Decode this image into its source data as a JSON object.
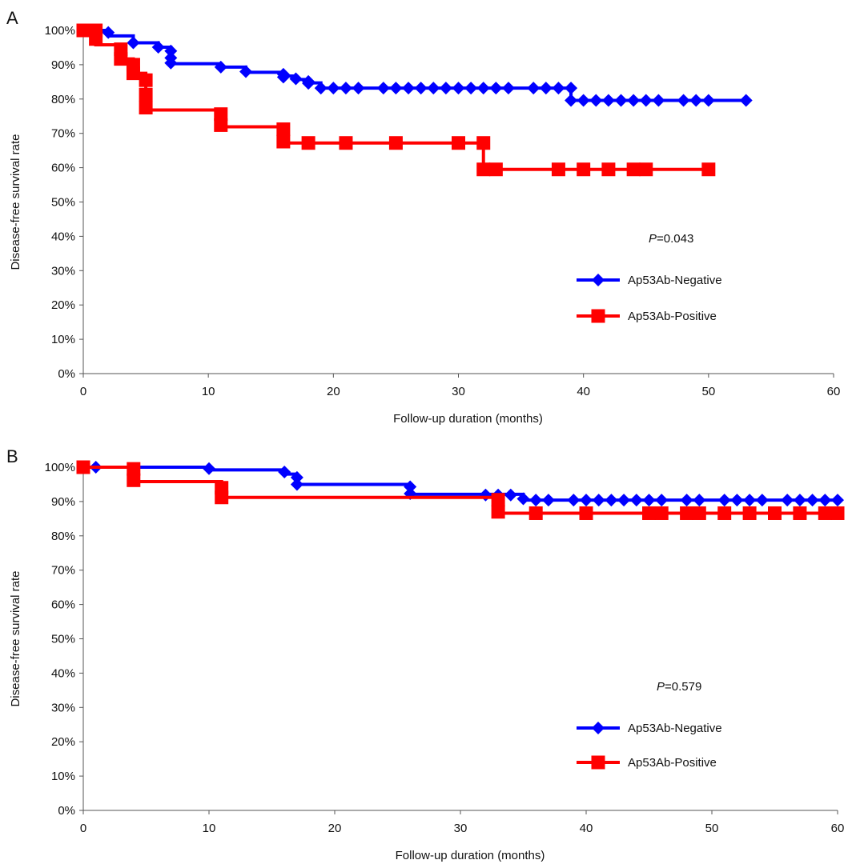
{
  "chart_data": [
    {
      "type": "line",
      "panel_label": "A",
      "xlabel": "Follow-up duration (months)",
      "ylabel": "Disease-free survival rate",
      "xlim": [
        0,
        60
      ],
      "ylim": [
        0,
        100
      ],
      "xticks": [
        "0",
        "10",
        "20",
        "30",
        "40",
        "50",
        "60"
      ],
      "yticks": [
        "0%",
        "10%",
        "20%",
        "30%",
        "40%",
        "50%",
        "60%",
        "70%",
        "80%",
        "90%",
        "100%"
      ],
      "grid": false,
      "legend_position": "right",
      "annotation": {
        "italic": "P",
        "rest": "=0.043"
      },
      "series": [
        {
          "name": "Ap53Ab-Negative",
          "color": "#0000ff",
          "marker": "diamond",
          "steps": [
            [
              0,
              100
            ],
            [
              2,
              98.4
            ],
            [
              4,
              96.4
            ],
            [
              6,
              95.1
            ],
            [
              7,
              93.0
            ],
            [
              7,
              90.3
            ],
            [
              11,
              89.3
            ],
            [
              13,
              87.8
            ],
            [
              16,
              86.7
            ],
            [
              17,
              85.7
            ],
            [
              18,
              84.7
            ],
            [
              19,
              83.2
            ],
            [
              39,
              79.6
            ],
            [
              53,
              79.6
            ]
          ],
          "points": [
            [
              0,
              100
            ],
            [
              1,
              100
            ],
            [
              2,
              99.4
            ],
            [
              4,
              96.4
            ],
            [
              6,
              95.1
            ],
            [
              7,
              94.0
            ],
            [
              7,
              92.0
            ],
            [
              7,
              90.5
            ],
            [
              11,
              89.3
            ],
            [
              13,
              88.0
            ],
            [
              16,
              87.2
            ],
            [
              16,
              86.4
            ],
            [
              17,
              85.9
            ],
            [
              18,
              85.1
            ],
            [
              18,
              84.6
            ],
            [
              19,
              83.2
            ],
            [
              20,
              83.2
            ],
            [
              21,
              83.2
            ],
            [
              22,
              83.2
            ],
            [
              24,
              83.2
            ],
            [
              25,
              83.2
            ],
            [
              26,
              83.2
            ],
            [
              27,
              83.2
            ],
            [
              28,
              83.2
            ],
            [
              29,
              83.2
            ],
            [
              30,
              83.2
            ],
            [
              31,
              83.2
            ],
            [
              32,
              83.2
            ],
            [
              33,
              83.2
            ],
            [
              34,
              83.2
            ],
            [
              36,
              83.2
            ],
            [
              37,
              83.2
            ],
            [
              38,
              83.2
            ],
            [
              39,
              83.2
            ],
            [
              39,
              79.6
            ],
            [
              40,
              79.6
            ],
            [
              41,
              79.6
            ],
            [
              42,
              79.6
            ],
            [
              43,
              79.6
            ],
            [
              44,
              79.6
            ],
            [
              45,
              79.6
            ],
            [
              46,
              79.6
            ],
            [
              48,
              79.6
            ],
            [
              49,
              79.6
            ],
            [
              50,
              79.6
            ],
            [
              53,
              79.6
            ]
          ]
        },
        {
          "name": "Ap53Ab-Positive",
          "color": "#ff0000",
          "marker": "square",
          "steps": [
            [
              0,
              100
            ],
            [
              1,
              95.8
            ],
            [
              3,
              91.7
            ],
            [
              4,
              87.5
            ],
            [
              5,
              81.3
            ],
            [
              5,
              76.8
            ],
            [
              11,
              71.9
            ],
            [
              16,
              67.2
            ],
            [
              32,
              59.5
            ],
            [
              50,
              59.5
            ]
          ],
          "points": [
            [
              0,
              100
            ],
            [
              1,
              100
            ],
            [
              1,
              97.5
            ],
            [
              3,
              94.5
            ],
            [
              3,
              91.7
            ],
            [
              4,
              90.0
            ],
            [
              4,
              87.5
            ],
            [
              5,
              85.5
            ],
            [
              5,
              81.3
            ],
            [
              5,
              77.5
            ],
            [
              11,
              75.6
            ],
            [
              11,
              72.4
            ],
            [
              16,
              71.2
            ],
            [
              16,
              67.6
            ],
            [
              18,
              67.2
            ],
            [
              21,
              67.2
            ],
            [
              25,
              67.2
            ],
            [
              30,
              67.2
            ],
            [
              32,
              67.2
            ],
            [
              32,
              59.5
            ],
            [
              33,
              59.5
            ],
            [
              38,
              59.5
            ],
            [
              40,
              59.5
            ],
            [
              42,
              59.5
            ],
            [
              44,
              59.5
            ],
            [
              45,
              59.5
            ],
            [
              50,
              59.5
            ]
          ]
        }
      ]
    },
    {
      "type": "line",
      "panel_label": "B",
      "xlabel": "Follow-up duration (months)",
      "ylabel": "Disease-free survival rate",
      "xlim": [
        0,
        60
      ],
      "ylim": [
        0,
        100
      ],
      "xticks": [
        "0",
        "10",
        "20",
        "30",
        "40",
        "50",
        "60"
      ],
      "yticks": [
        "0%",
        "10%",
        "20%",
        "30%",
        "40%",
        "50%",
        "60%",
        "70%",
        "80%",
        "90%",
        "100%"
      ],
      "grid": false,
      "legend_position": "right",
      "annotation": {
        "italic": "P",
        "rest": "=0.579"
      },
      "series": [
        {
          "name": "Ap53Ab-Negative",
          "color": "#0000ff",
          "marker": "diamond",
          "steps": [
            [
              0,
              100
            ],
            [
              10,
              99.2
            ],
            [
              16,
              98.0
            ],
            [
              17,
              95.0
            ],
            [
              26,
              92.1
            ],
            [
              35,
              90.4
            ],
            [
              60,
              90.4
            ]
          ],
          "points": [
            [
              0,
              100
            ],
            [
              1,
              100
            ],
            [
              10,
              99.6
            ],
            [
              16,
              98.6
            ],
            [
              17,
              97.0
            ],
            [
              17,
              95.0
            ],
            [
              26,
              94.3
            ],
            [
              26,
              92.3
            ],
            [
              32,
              91.9
            ],
            [
              33,
              91.9
            ],
            [
              34,
              91.9
            ],
            [
              35,
              90.8
            ],
            [
              36,
              90.4
            ],
            [
              37,
              90.4
            ],
            [
              39,
              90.4
            ],
            [
              40,
              90.4
            ],
            [
              41,
              90.4
            ],
            [
              42,
              90.4
            ],
            [
              43,
              90.4
            ],
            [
              44,
              90.4
            ],
            [
              45,
              90.4
            ],
            [
              46,
              90.4
            ],
            [
              48,
              90.4
            ],
            [
              49,
              90.4
            ],
            [
              51,
              90.4
            ],
            [
              52,
              90.4
            ],
            [
              53,
              90.4
            ],
            [
              54,
              90.4
            ],
            [
              56,
              90.4
            ],
            [
              57,
              90.4
            ],
            [
              58,
              90.4
            ],
            [
              59,
              90.4
            ],
            [
              60,
              90.4
            ]
          ]
        },
        {
          "name": "Ap53Ab-Positive",
          "color": "#ff0000",
          "marker": "square",
          "steps": [
            [
              0,
              100
            ],
            [
              4,
              95.8
            ],
            [
              11,
              91.2
            ],
            [
              33,
              86.6
            ],
            [
              60,
              86.6
            ]
          ],
          "points": [
            [
              0,
              100
            ],
            [
              4,
              99.5
            ],
            [
              4,
              96.2
            ],
            [
              11,
              94.0
            ],
            [
              11,
              91.2
            ],
            [
              33,
              90.5
            ],
            [
              33,
              87.0
            ],
            [
              36,
              86.6
            ],
            [
              40,
              86.6
            ],
            [
              45,
              86.6
            ],
            [
              46,
              86.6
            ],
            [
              48,
              86.6
            ],
            [
              49,
              86.6
            ],
            [
              51,
              86.6
            ],
            [
              53,
              86.6
            ],
            [
              55,
              86.6
            ],
            [
              57,
              86.6
            ],
            [
              59,
              86.6
            ],
            [
              60,
              86.6
            ]
          ]
        }
      ]
    }
  ]
}
